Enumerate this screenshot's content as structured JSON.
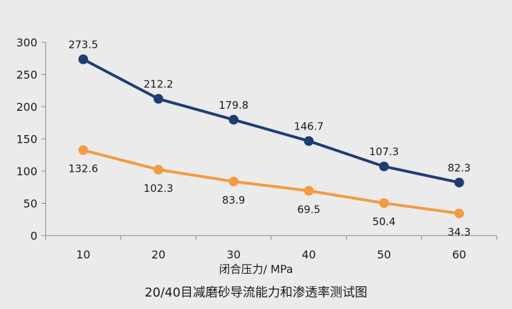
{
  "chart_data": {
    "type": "line",
    "title": "20/40目减磨砂导流能力和渗透率测试图",
    "xlabel": "闭合压力/ MPa",
    "ylabel": "",
    "x": [
      10,
      20,
      30,
      40,
      50,
      60
    ],
    "ylim": [
      0,
      300
    ],
    "yticks": [
      0,
      50,
      100,
      150,
      200,
      250,
      300
    ],
    "grid": false,
    "legend": "none",
    "series": [
      {
        "color": "#1f3c73",
        "values": [
          273.5,
          212.2,
          179.8,
          146.7,
          107.3,
          82.3
        ],
        "labels": [
          "273.5",
          "212.2",
          "179.8",
          "146.7",
          "107.3",
          "82.3"
        ],
        "label_placement": "above"
      },
      {
        "color": "#f39a43",
        "values": [
          132.6,
          102.3,
          83.9,
          69.5,
          50.4,
          34.3
        ],
        "labels": [
          "132.6",
          "102.3",
          "83.9",
          "69.5",
          "50.4",
          "34.3"
        ],
        "label_placement": "below"
      }
    ]
  }
}
